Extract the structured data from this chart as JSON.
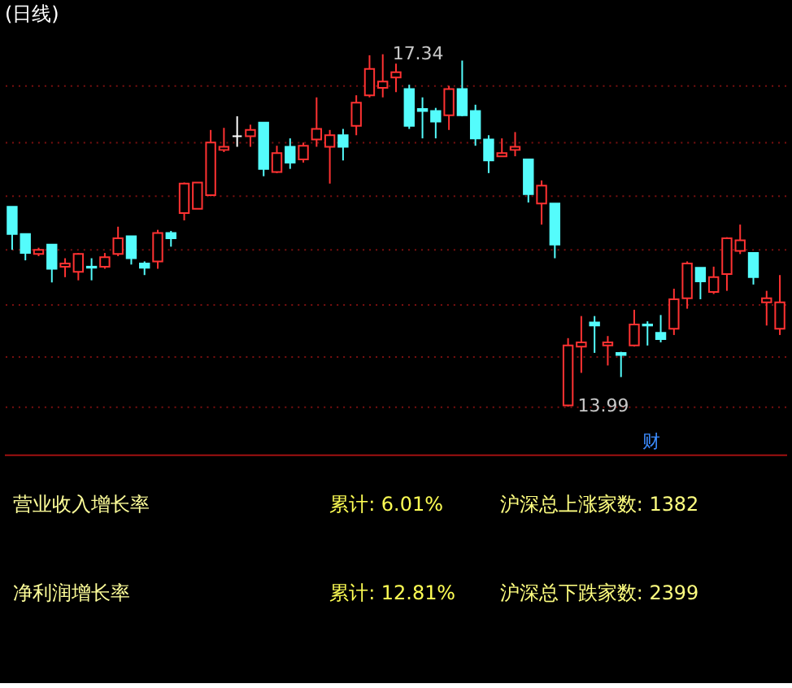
{
  "chart_data": [
    {
      "type": "candlestick",
      "title": "(日线)",
      "categories": [
        null,
        null,
        null,
        null,
        null,
        null,
        null,
        null,
        null,
        null,
        null,
        null,
        null,
        null,
        null,
        null,
        null,
        null,
        null,
        null,
        null,
        null,
        null,
        null,
        null,
        null,
        null,
        null,
        null,
        null,
        null,
        null,
        null,
        null,
        null,
        null,
        null,
        null,
        null,
        null,
        null,
        null,
        null,
        null,
        null,
        null,
        null,
        null,
        null,
        null,
        null,
        null,
        null,
        null,
        null,
        null,
        null,
        null,
        null
      ],
      "ohlc": [
        [
          15.89,
          15.89,
          15.48,
          15.63
        ],
        [
          15.63,
          15.63,
          15.38,
          15.45
        ],
        [
          15.44,
          15.5,
          15.42,
          15.48
        ],
        [
          15.53,
          15.53,
          15.17,
          15.3
        ],
        [
          15.32,
          15.4,
          15.22,
          15.35
        ],
        [
          15.27,
          15.45,
          15.19,
          15.44
        ],
        [
          15.32,
          15.4,
          15.19,
          15.31
        ],
        [
          15.32,
          15.45,
          15.3,
          15.41
        ],
        [
          15.44,
          15.7,
          15.42,
          15.59
        ],
        [
          15.61,
          15.61,
          15.34,
          15.4
        ],
        [
          15.35,
          15.37,
          15.24,
          15.31
        ],
        [
          15.37,
          15.67,
          15.3,
          15.64
        ],
        [
          15.64,
          15.66,
          15.51,
          15.59
        ],
        [
          15.83,
          16.12,
          15.76,
          16.11
        ],
        [
          15.87,
          16.12,
          15.87,
          16.12
        ],
        [
          16.0,
          16.62,
          15.99,
          16.5
        ],
        [
          16.43,
          16.64,
          16.41,
          16.46
        ],
        [
          16.56,
          16.75,
          16.46,
          16.56
        ],
        [
          16.56,
          16.67,
          16.46,
          16.62
        ],
        [
          16.69,
          16.69,
          16.18,
          16.25
        ],
        [
          16.22,
          16.47,
          16.21,
          16.4
        ],
        [
          16.46,
          16.54,
          16.25,
          16.31
        ],
        [
          16.34,
          16.5,
          16.31,
          16.47
        ],
        [
          16.53,
          16.93,
          16.46,
          16.63
        ],
        [
          16.46,
          16.62,
          16.11,
          16.57
        ],
        [
          16.57,
          16.63,
          16.33,
          16.46
        ],
        [
          16.66,
          16.95,
          16.57,
          16.88
        ],
        [
          16.95,
          17.33,
          16.93,
          17.2
        ],
        [
          17.02,
          17.34,
          16.93,
          17.08
        ],
        [
          17.12,
          17.25,
          16.98,
          17.17
        ],
        [
          17.01,
          17.05,
          16.63,
          16.66
        ],
        [
          16.82,
          16.93,
          16.54,
          16.8
        ],
        [
          16.8,
          16.83,
          16.54,
          16.7
        ],
        [
          16.76,
          17.04,
          16.62,
          17.01
        ],
        [
          17.01,
          17.28,
          16.75,
          16.76
        ],
        [
          16.8,
          16.86,
          16.47,
          16.54
        ],
        [
          16.53,
          16.57,
          16.21,
          16.33
        ],
        [
          16.37,
          16.54,
          16.37,
          16.4
        ],
        [
          16.43,
          16.6,
          16.37,
          16.46
        ],
        [
          16.34,
          16.34,
          15.93,
          16.01
        ],
        [
          15.92,
          16.14,
          15.72,
          16.09
        ],
        [
          15.92,
          15.92,
          15.4,
          15.53
        ],
        [
          14.0,
          14.64,
          13.99,
          14.57
        ],
        [
          14.56,
          14.85,
          14.31,
          14.6
        ],
        [
          14.79,
          14.85,
          14.5,
          14.76
        ],
        [
          14.57,
          14.66,
          14.38,
          14.6
        ],
        [
          14.5,
          14.51,
          14.27,
          14.48
        ],
        [
          14.57,
          14.91,
          14.56,
          14.77
        ],
        [
          14.77,
          14.8,
          14.57,
          14.76
        ],
        [
          14.69,
          14.86,
          14.6,
          14.63
        ],
        [
          14.73,
          15.11,
          14.67,
          15.01
        ],
        [
          15.02,
          15.37,
          14.92,
          15.35
        ],
        [
          15.31,
          15.31,
          15.01,
          15.18
        ],
        [
          15.08,
          15.32,
          15.06,
          15.22
        ],
        [
          15.25,
          15.6,
          15.09,
          15.59
        ],
        [
          15.47,
          15.72,
          15.44,
          15.57
        ],
        [
          15.45,
          15.45,
          15.15,
          15.22
        ],
        [
          14.98,
          15.09,
          14.76,
          15.02
        ],
        [
          14.73,
          15.24,
          14.67,
          14.98
        ]
      ],
      "colors": [
        "#54fcfc",
        "#54fcfc",
        "#ff3232",
        "#54fcfc",
        "#ff3232",
        "#ff3232",
        "#54fcfc",
        "#ff3232",
        "#ff3232",
        "#54fcfc",
        "#54fcfc",
        "#ff3232",
        "#54fcfc",
        "#ff3232",
        "#ff3232",
        "#ff3232",
        "#ff3232",
        "#ffffff",
        "#ff3232",
        "#54fcfc",
        "#ff3232",
        "#54fcfc",
        "#ff3232",
        "#ff3232",
        "#ff3232",
        "#54fcfc",
        "#ff3232",
        "#ff3232",
        "#ff3232",
        "#ff3232",
        "#54fcfc",
        "#54fcfc",
        "#54fcfc",
        "#ff3232",
        "#54fcfc",
        "#54fcfc",
        "#54fcfc",
        "#ff3232",
        "#ff3232",
        "#54fcfc",
        "#ff3232",
        "#54fcfc",
        "#ff3232",
        "#ff3232",
        "#54fcfc",
        "#ff3232",
        "#54fcfc",
        "#ff3232",
        "#54fcfc",
        "#54fcfc",
        "#ff3232",
        "#ff3232",
        "#54fcfc",
        "#ff3232",
        "#ff3232",
        "#ff3232",
        "#54fcfc",
        "#ff3232",
        "#ff3232"
      ],
      "yticks": [
        {
          "value": 17.04,
          "label": null
        },
        {
          "value": 16.5,
          "label": null
        },
        {
          "value": 15.99,
          "label": null
        },
        {
          "value": 15.48,
          "label": null
        },
        {
          "value": 14.96,
          "label": null
        },
        {
          "value": 14.47,
          "label": null
        },
        {
          "value": 13.99,
          "label": null
        }
      ],
      "grid": "y",
      "tick_labels": false,
      "annotations": [
        "17.34",
        "13.99",
        "财"
      ]
    },
    {
      "type": "other",
      "annotations": [
        "营业收入增长率",
        "累计: 6.01%",
        "沪深总上涨家数: 1382",
        "净利润增长率",
        "累计: 12.81%",
        "沪深总下跌家数: 2399"
      ]
    }
  ]
}
